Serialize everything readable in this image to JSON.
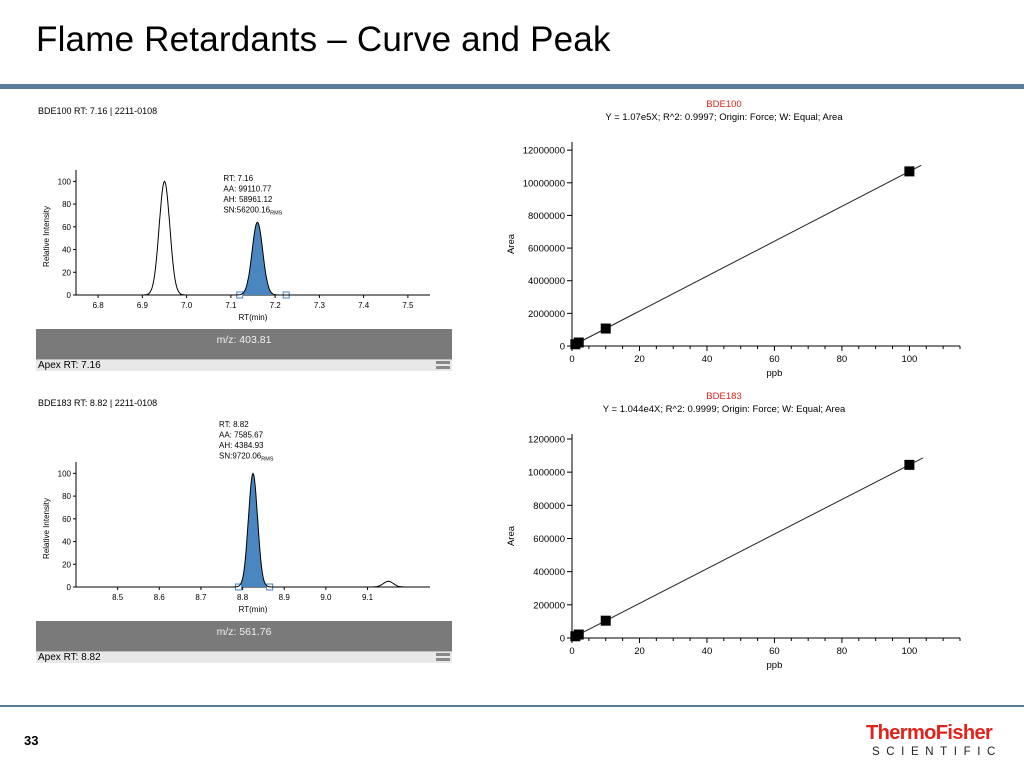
{
  "slide": {
    "title": "Flame Retardants – Curve and Peak",
    "page_number": "33",
    "logo": {
      "word1": "ThermoFisher",
      "word2": "SCIENTIFIC",
      "color": "#e2231a"
    },
    "rule_color": "#5b7b9a"
  },
  "chart_data": [
    {
      "type": "line",
      "panel": "chromatogram",
      "header": "BDE100  RT: 7.16 | 2211-0108",
      "xlabel": "RT(min)",
      "ylabel": "Relative Intensity",
      "xlim": [
        6.75,
        7.55
      ],
      "ylim": [
        0,
        110
      ],
      "xticks": [
        "6.8",
        "6.9",
        "7.0",
        "7.1",
        "7.2",
        "7.3",
        "7.4",
        "7.5"
      ],
      "yticks": [
        "0",
        "20",
        "40",
        "60",
        "80",
        "100"
      ],
      "peaks": [
        {
          "rt": 6.95,
          "height": 100,
          "width": 0.012,
          "filled": false
        },
        {
          "rt": 7.16,
          "height": 64,
          "width": 0.012,
          "filled": true,
          "start": 7.12,
          "end": 7.225
        }
      ],
      "annotation": [
        "RT: 7.16",
        "AA: 99110.77",
        "AH: 58961.12",
        "SN:56200.16"
      ],
      "annotation_sub": "RMS",
      "mz": "m/z: 403.81",
      "apex": "Apex RT: 7.16",
      "fill_color": "#4a86c0"
    },
    {
      "type": "line",
      "panel": "chromatogram",
      "header": "BDE183  RT: 8.82 | 2211-0108",
      "xlabel": "RT(min)",
      "ylabel": "Relative Intensity",
      "xlim": [
        8.4,
        9.25
      ],
      "ylim": [
        0,
        110
      ],
      "xticks": [
        "8.5",
        "8.6",
        "8.7",
        "8.8",
        "8.9",
        "9.0",
        "9.1"
      ],
      "yticks": [
        "0",
        "20",
        "40",
        "60",
        "80",
        "100"
      ],
      "peaks": [
        {
          "rt": 8.825,
          "height": 100,
          "width": 0.011,
          "filled": true,
          "start": 8.79,
          "end": 8.865
        },
        {
          "rt": 9.15,
          "height": 5,
          "width": 0.012,
          "filled": false
        }
      ],
      "annotation": [
        "RT: 8.82",
        "AA: 7585.67",
        "AH: 4384.93",
        "SN:9720.06"
      ],
      "annotation_sub": "RMS",
      "mz": "m/z: 561.76",
      "apex": "Apex RT: 8.82",
      "fill_color": "#4a86c0"
    },
    {
      "type": "scatter",
      "panel": "calibration",
      "title": "BDE100",
      "subtitle": "Y = 1.07e5X; R^2: 0.9997; Origin: Force; W: Equal; Area",
      "xlabel": "ppb",
      "ylabel": "Area",
      "xlim": [
        0,
        115
      ],
      "ylim": [
        0,
        12500000
      ],
      "xticks": [
        "0",
        "20",
        "40",
        "60",
        "80",
        "100"
      ],
      "yticks": [
        "0",
        "2000000",
        "4000000",
        "6000000",
        "8000000",
        "10000000",
        "12000000"
      ],
      "points": [
        {
          "x": 1,
          "y": 107000
        },
        {
          "x": 2,
          "y": 214000
        },
        {
          "x": 10,
          "y": 1070000
        },
        {
          "x": 100,
          "y": 10700000
        }
      ],
      "fit_slope": 107000,
      "fit_x_end": 103.5,
      "title_color": "#e2231a"
    },
    {
      "type": "scatter",
      "panel": "calibration",
      "title": "BDE183",
      "subtitle": "Y = 1.044e4X; R^2: 0.9999; Origin: Force; W: Equal; Area",
      "xlabel": "ppb",
      "ylabel": "Area",
      "xlim": [
        0,
        115
      ],
      "ylim": [
        0,
        1230000
      ],
      "xticks": [
        "0",
        "20",
        "40",
        "60",
        "80",
        "100"
      ],
      "yticks": [
        "0",
        "200000",
        "400000",
        "600000",
        "800000",
        "1000000",
        "1200000"
      ],
      "points": [
        {
          "x": 1,
          "y": 10440
        },
        {
          "x": 2,
          "y": 20880
        },
        {
          "x": 10,
          "y": 104400
        },
        {
          "x": 100,
          "y": 1044000
        }
      ],
      "fit_slope": 10440,
      "fit_x_end": 104,
      "title_color": "#e2231a"
    }
  ]
}
